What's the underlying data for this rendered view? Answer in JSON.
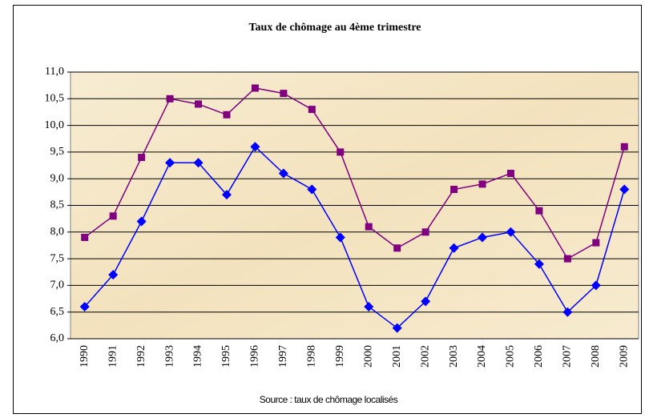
{
  "chart_data": {
    "type": "line",
    "title": "Taux de chômage au 4ème trimestre",
    "source": "Source : taux de chômage localisés",
    "categories": [
      "1990",
      "1991",
      "1992",
      "1993",
      "1994",
      "1995",
      "1996",
      "1997",
      "1998",
      "1999",
      "2000",
      "2001",
      "2002",
      "2003",
      "2004",
      "2005",
      "2006",
      "2007",
      "2008",
      "2009"
    ],
    "series": [
      {
        "color": "#800080",
        "marker": "square",
        "values": [
          7.9,
          8.3,
          9.4,
          10.5,
          10.4,
          10.2,
          10.7,
          10.6,
          10.3,
          9.5,
          8.1,
          7.7,
          8.0,
          8.8,
          8.9,
          9.1,
          8.4,
          7.5,
          7.8,
          9.6
        ]
      },
      {
        "color": "#0000ff",
        "marker": "diamond",
        "values": [
          6.6,
          7.2,
          8.2,
          9.3,
          9.3,
          8.7,
          9.6,
          9.1,
          8.8,
          7.9,
          6.6,
          6.2,
          6.7,
          7.7,
          7.9,
          8.0,
          7.4,
          6.5,
          7.0,
          8.8
        ]
      }
    ],
    "ylim": [
      6,
      11
    ],
    "yticks": [
      {
        "value": 6,
        "label": "6,0"
      },
      {
        "value": 6.5,
        "label": "6,5"
      },
      {
        "value": 7,
        "label": "7,0"
      },
      {
        "value": 7.5,
        "label": "7,5"
      },
      {
        "value": 8,
        "label": "8,0"
      },
      {
        "value": 8.5,
        "label": "8,5"
      },
      {
        "value": 9,
        "label": "9,0"
      },
      {
        "value": 9.5,
        "label": "9,5"
      },
      {
        "value": 10,
        "label": "10,0"
      },
      {
        "value": 10.5,
        "label": "10,5"
      },
      {
        "value": 11,
        "label": "11,0"
      }
    ],
    "grid": true
  }
}
